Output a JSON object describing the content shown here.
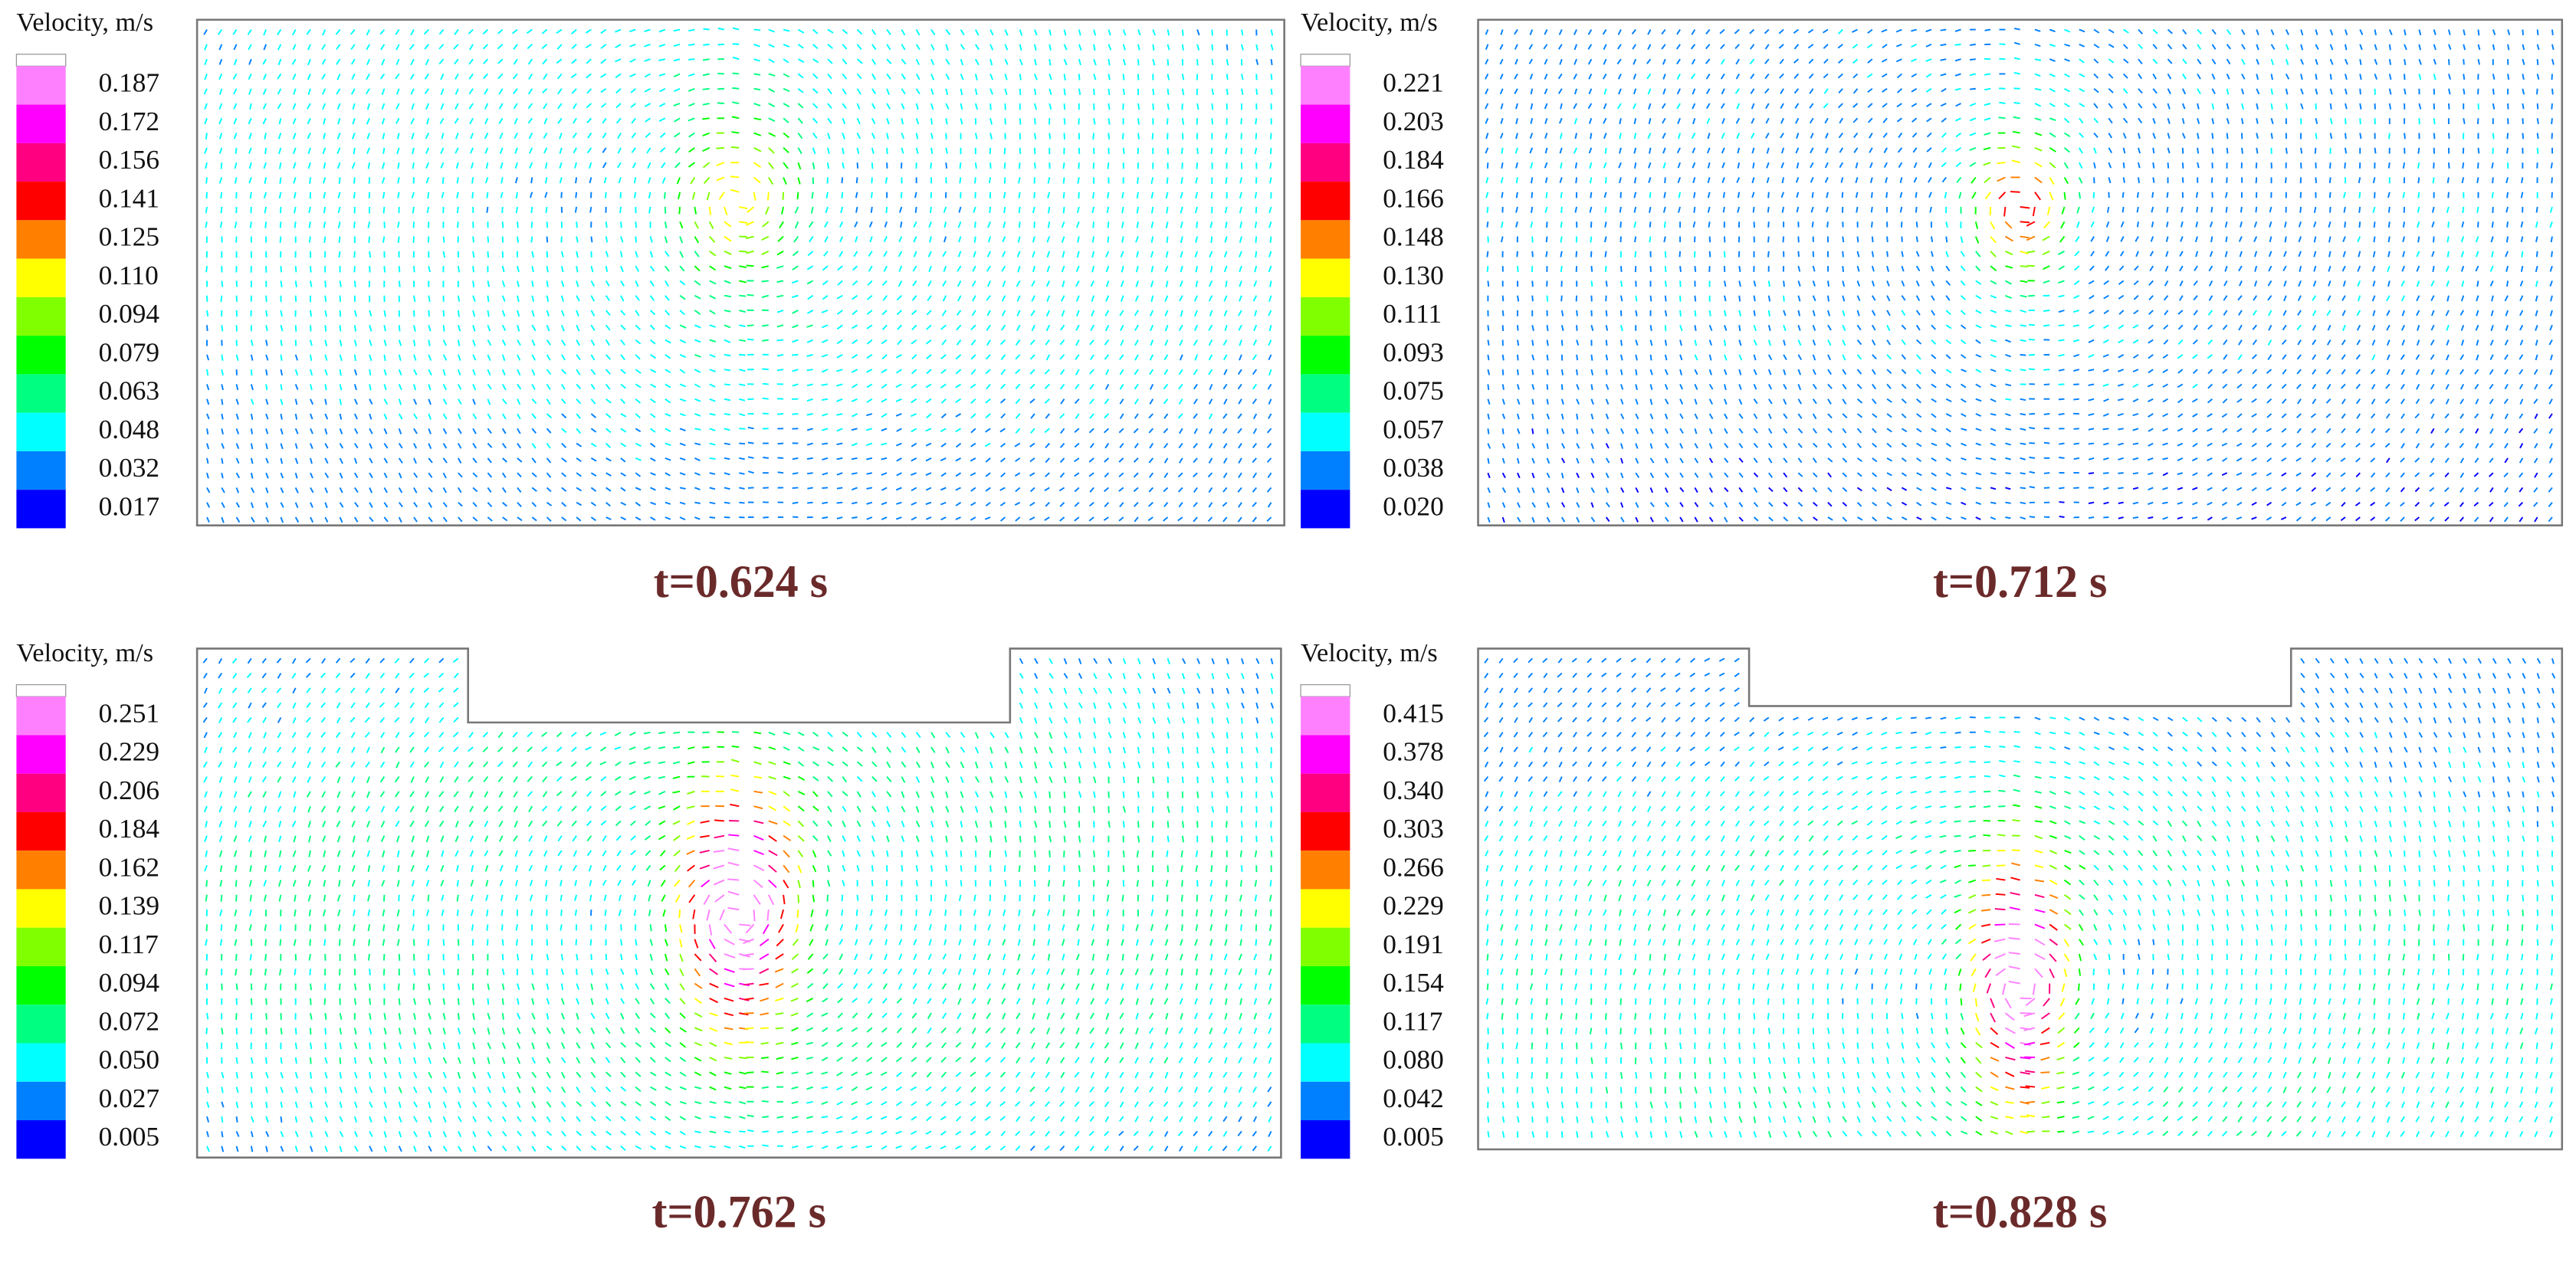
{
  "panels": [
    {
      "legend_title": "Velocity, m/s",
      "legend_labels": [
        "0.187",
        "0.172",
        "0.156",
        "0.141",
        "0.125",
        "0.110",
        "0.094",
        "0.079",
        "0.063",
        "0.048",
        "0.032",
        "0.017"
      ],
      "caption": "t=0.624 s"
    },
    {
      "legend_title": "Velocity, m/s",
      "legend_labels": [
        "0.221",
        "0.203",
        "0.184",
        "0.166",
        "0.148",
        "0.130",
        "0.111",
        "0.093",
        "0.075",
        "0.057",
        "0.038",
        "0.020"
      ],
      "caption": "t=0.712 s"
    },
    {
      "legend_title": "Velocity, m/s",
      "legend_labels": [
        "0.251",
        "0.229",
        "0.206",
        "0.184",
        "0.162",
        "0.139",
        "0.117",
        "0.094",
        "0.072",
        "0.050",
        "0.027",
        "0.005"
      ],
      "caption": "t=0.762 s"
    },
    {
      "legend_title": "Velocity, m/s",
      "legend_labels": [
        "0.415",
        "0.378",
        "0.340",
        "0.303",
        "0.266",
        "0.229",
        "0.191",
        "0.154",
        "0.117",
        "0.080",
        "0.042",
        "0.005"
      ],
      "caption": "t=0.828 s"
    }
  ]
}
